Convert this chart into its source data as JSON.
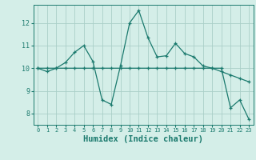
{
  "x": [
    0,
    1,
    2,
    3,
    4,
    5,
    6,
    7,
    8,
    9,
    10,
    11,
    12,
    13,
    14,
    15,
    16,
    17,
    18,
    19,
    20,
    21,
    22,
    23
  ],
  "line1": [
    10.0,
    9.85,
    10.0,
    10.25,
    10.7,
    11.0,
    10.3,
    8.6,
    8.4,
    10.1,
    12.0,
    12.55,
    11.35,
    10.5,
    10.55,
    11.1,
    10.65,
    10.5,
    10.1,
    10.0,
    10.0,
    8.25,
    8.6,
    7.75
  ],
  "line2": [
    10.0,
    10.0,
    10.0,
    10.0,
    10.0,
    10.0,
    10.0,
    10.0,
    10.0,
    10.0,
    10.0,
    10.0,
    10.0,
    10.0,
    10.0,
    10.0,
    10.0,
    10.0,
    10.0,
    10.0,
    9.85,
    9.7,
    9.55,
    9.4
  ],
  "line_color": "#1b7a6e",
  "bg_color": "#d4eee8",
  "grid_color": "#aacfc8",
  "xlabel": "Humidex (Indice chaleur)",
  "xlabel_fontsize": 7.5,
  "tick_fontfamily": "monospace",
  "ylabel_ticks": [
    8,
    9,
    10,
    11,
    12
  ],
  "ylim": [
    7.5,
    12.8
  ],
  "xlim": [
    -0.5,
    23.5
  ]
}
